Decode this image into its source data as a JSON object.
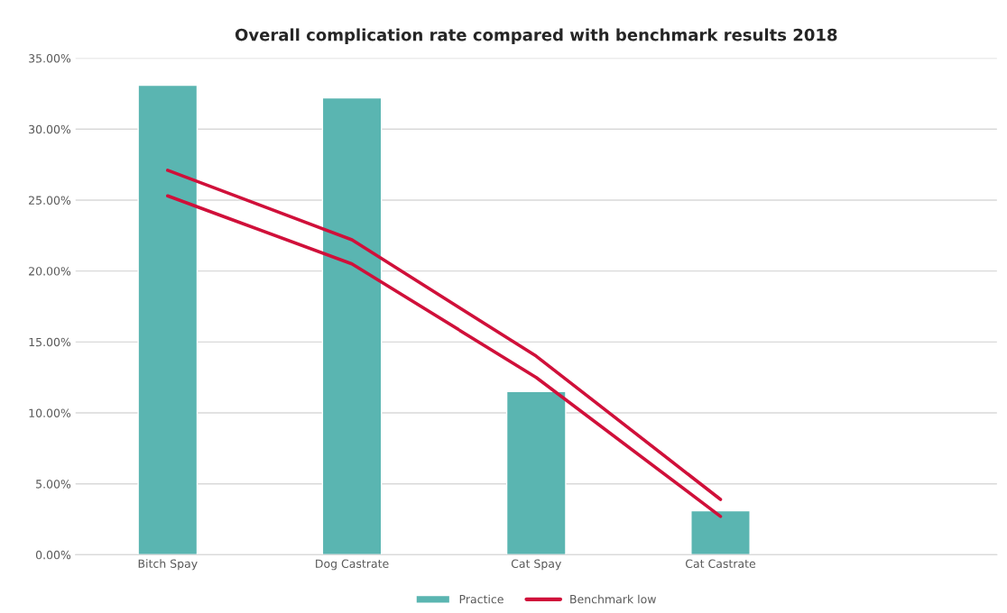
{
  "chart_data": {
    "type": "bar",
    "title": "Overall complication rate compared with benchmark results 2018",
    "categories": [
      "Bitch Spay",
      "Dog Castrate",
      "Cat Spay",
      "Cat Castrate",
      null
    ],
    "series": [
      {
        "name": "Practice",
        "color": "#5ab5b1",
        "values": [
          33.1,
          32.2,
          11.5,
          3.1,
          null
        ]
      },
      {
        "type": "line",
        "color": "#d0103a",
        "values": [
          27.1,
          22.2,
          14.0,
          3.9,
          null
        ]
      },
      {
        "name": "Benchmark low",
        "type": "line",
        "color": "#d0103a",
        "values": [
          25.3,
          20.5,
          12.5,
          2.7,
          null
        ]
      }
    ],
    "ylim": [
      0,
      35
    ],
    "yticks": [
      {
        "value": 0,
        "label": "0.00%"
      },
      {
        "value": 5,
        "label": "5.00%"
      },
      {
        "value": 10,
        "label": "10.00%"
      },
      {
        "value": 15,
        "label": "15.00%"
      },
      {
        "value": 20,
        "label": "20.00%"
      },
      {
        "value": 25,
        "label": "25.00%"
      },
      {
        "value": 30,
        "label": "30.00%"
      },
      {
        "value": 35,
        "label": "35.00%"
      }
    ],
    "grid": "y",
    "legend": "bottom"
  }
}
